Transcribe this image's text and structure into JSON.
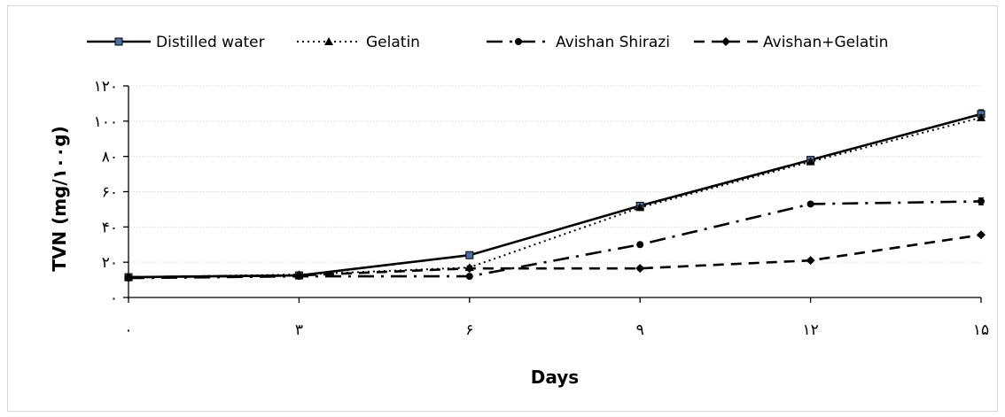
{
  "chart_data": {
    "type": "line",
    "xlabel": "Days",
    "ylabel": "TVN (mg/۱۰۰g)",
    "x": [
      0,
      3,
      6,
      9,
      12,
      15
    ],
    "x_tick_labels": [
      "۰",
      "۳",
      "۶",
      "۹",
      "۱۲",
      "۱۵"
    ],
    "ylim": [
      0,
      120
    ],
    "y_ticks": [
      0,
      20,
      40,
      60,
      80,
      100,
      120
    ],
    "y_tick_labels": [
      "۰",
      "۲۰",
      "۴۰",
      "۶۰",
      "۸۰",
      "۱۰۰",
      "۱۲۰"
    ],
    "grid": "horizontal",
    "legend_position": "top",
    "series": [
      {
        "name": "Distilled water",
        "values": [
          11.5,
          12.5,
          24,
          52,
          78,
          104
        ],
        "errors": [
          1,
          1.5,
          1,
          1,
          1,
          2.5
        ],
        "marker": "square",
        "dash": "solid",
        "color": "#000000",
        "marker_color": "#4a6fa5"
      },
      {
        "name": "Gelatin",
        "values": [
          11.5,
          13,
          17,
          51,
          77,
          102
        ],
        "errors": [
          1,
          1.5,
          1,
          1,
          1,
          1.5
        ],
        "marker": "triangle",
        "dash": "dotted",
        "color": "#000000"
      },
      {
        "name": "Avishan Shirazi",
        "values": [
          11,
          12,
          12,
          30,
          53,
          54.5
        ],
        "errors": [
          1,
          1,
          1,
          1,
          1,
          2
        ],
        "marker": "circle",
        "dash": "dashdot",
        "color": "#000000"
      },
      {
        "name": "Avishan+Gelatin",
        "values": [
          11.5,
          12.5,
          16.5,
          16.5,
          21,
          35.5
        ],
        "errors": [
          1,
          1,
          1,
          1,
          1,
          1
        ],
        "marker": "diamond",
        "dash": "dashed",
        "color": "#000000"
      }
    ]
  }
}
